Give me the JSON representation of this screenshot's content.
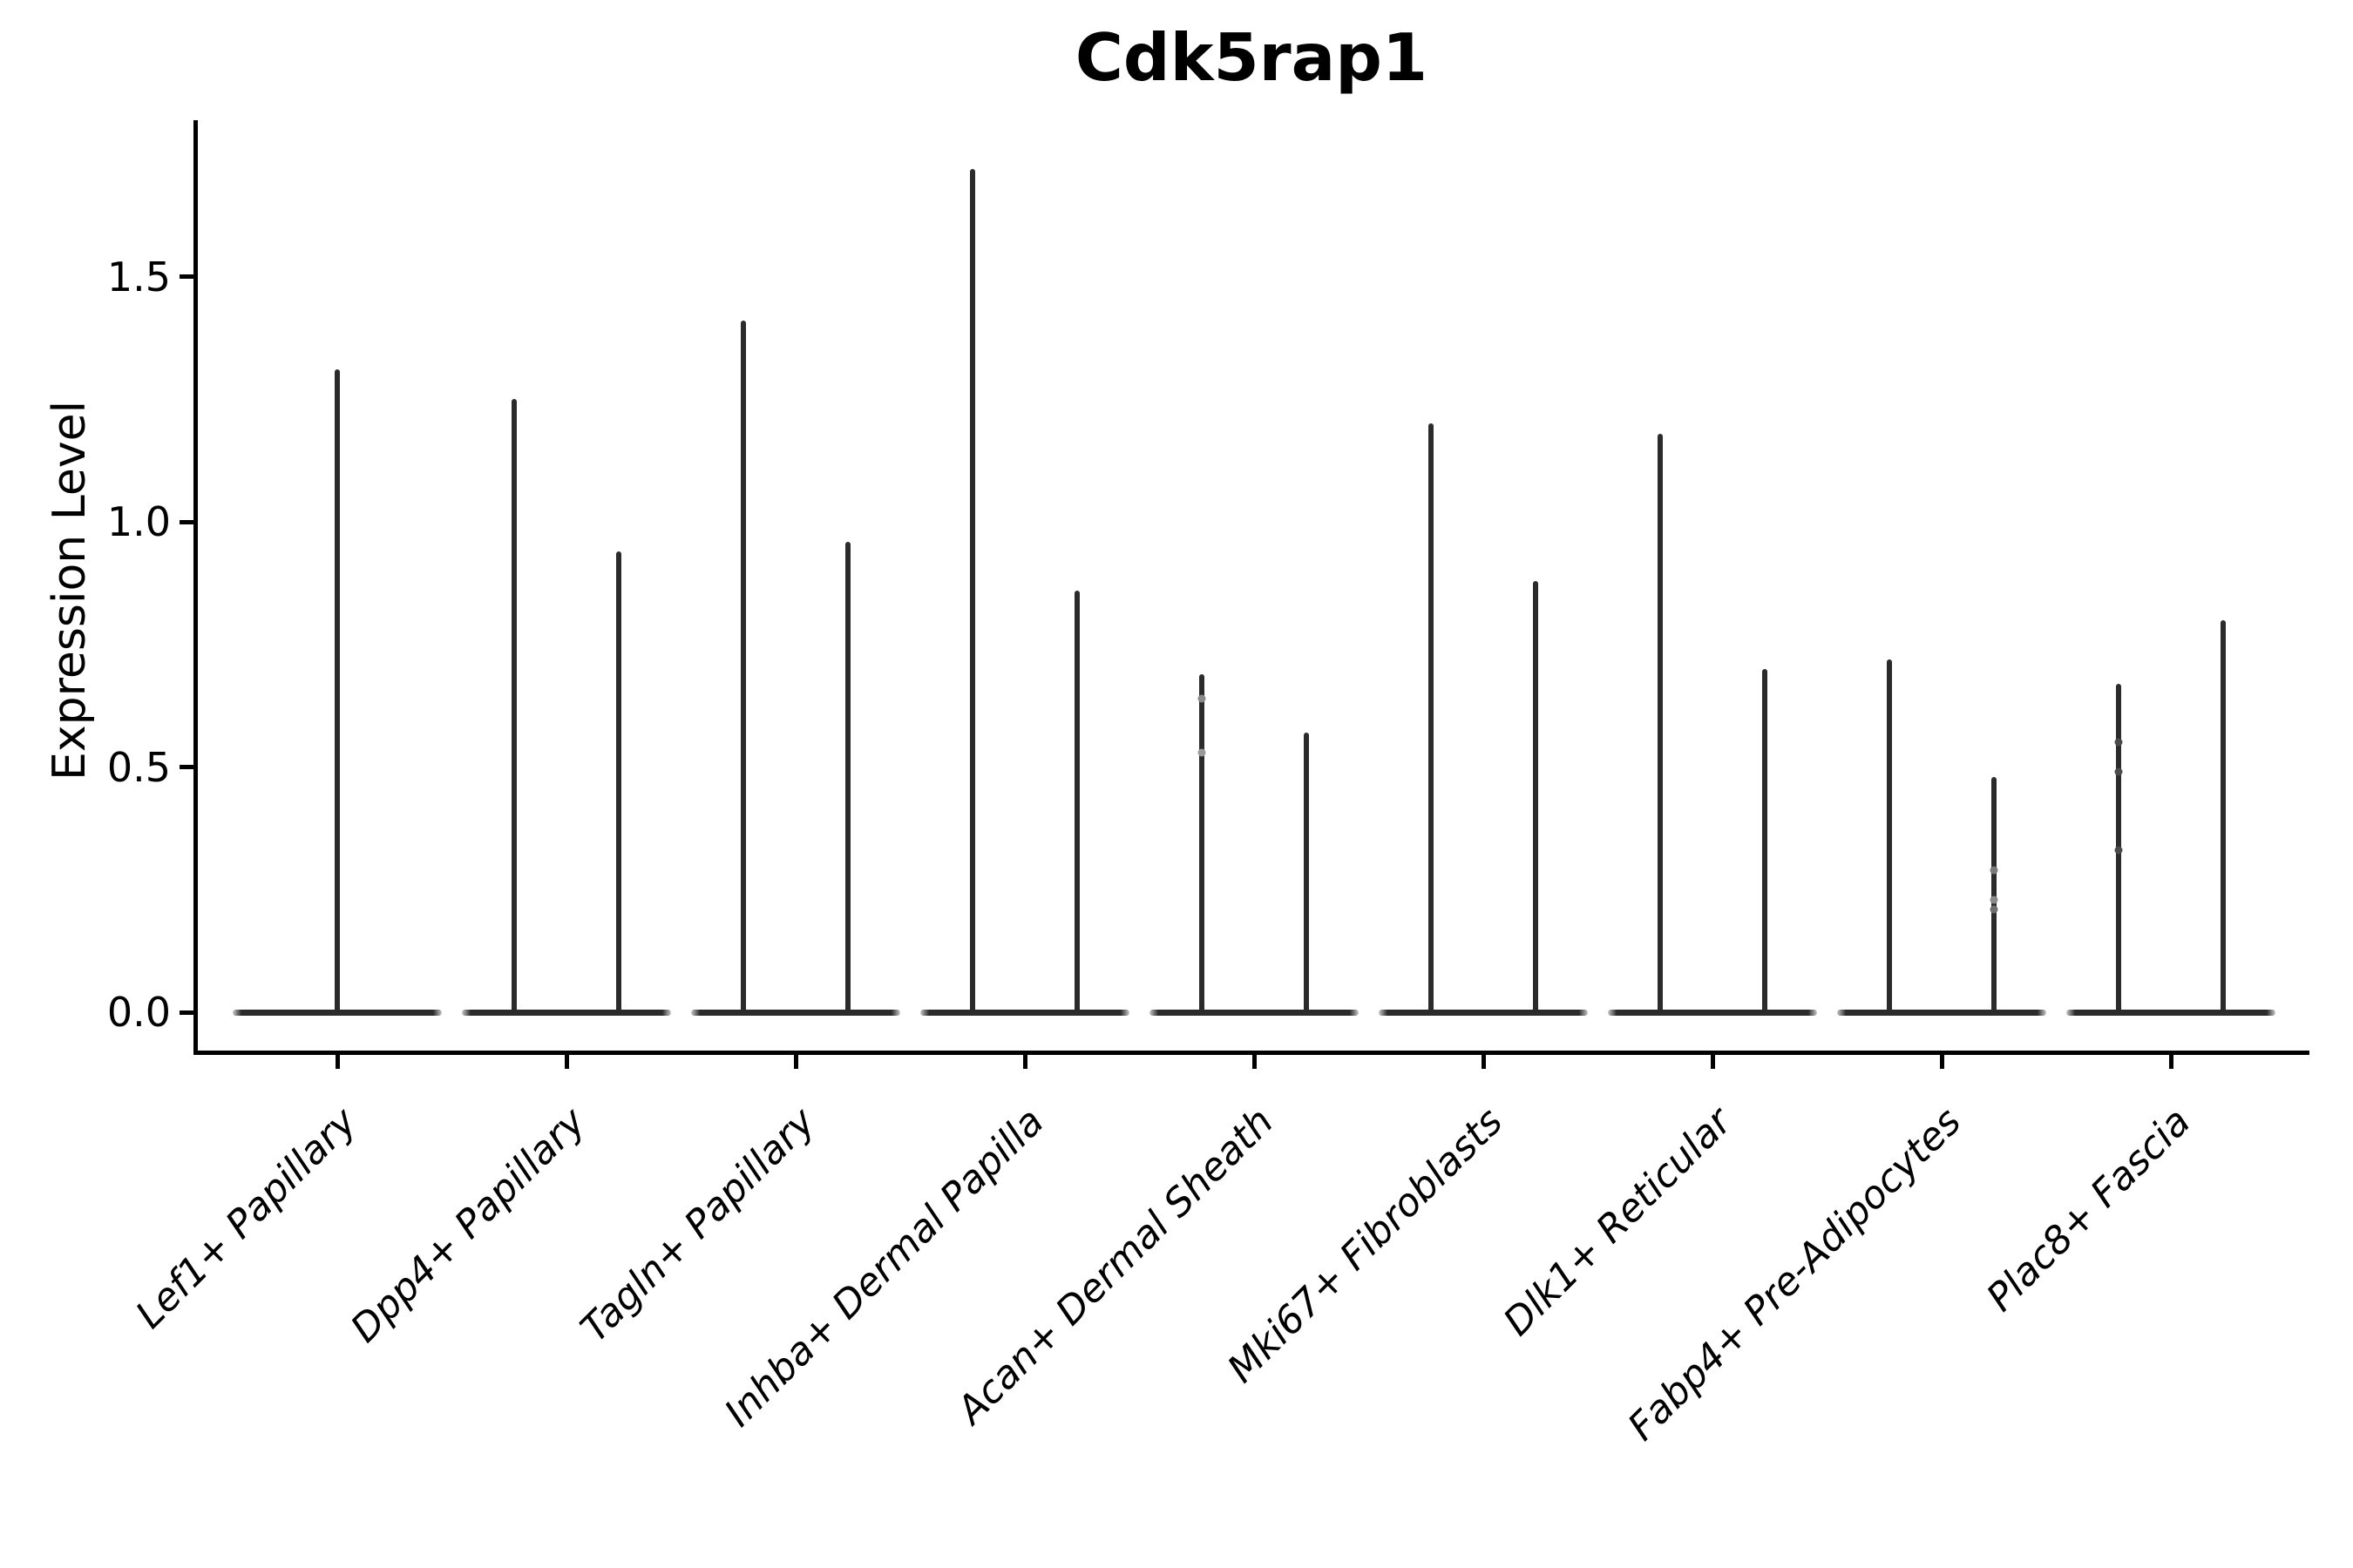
{
  "title": "Cdk5rap1",
  "chart_data": {
    "type": "violin",
    "title": "Cdk5rap1",
    "xlabel": "",
    "ylabel": "Expression Level",
    "ylim": [
      0,
      1.82
    ],
    "yticks": [
      0.0,
      0.5,
      1.0,
      1.5
    ],
    "ytick_labels": [
      "0.0",
      "0.5",
      "1.0",
      "1.5"
    ],
    "grid": false,
    "legend": false,
    "background_color": "#ffffff",
    "stroke_color": "#2b2b2b",
    "text_color": "#000000",
    "categories": [
      "Lef1+ Papillary",
      "Dpp4+ Papillary",
      "Tagln+ Papillary",
      "Inhba+ Dermal Papilla",
      "Acan+ Dermal Sheath",
      "Mki67+ Fibroblasts",
      "Dlk1+ Reticular",
      "Fabp4+ Pre-Adipocytes",
      "Plac8+ Fascia"
    ],
    "violins": [
      {
        "category": "Lef1+ Papillary",
        "spikes": [
          {
            "offset": 0.0,
            "max": 1.31
          }
        ],
        "points": []
      },
      {
        "category": "Dpp4+ Papillary",
        "spikes": [
          {
            "offset": -0.23,
            "max": 1.25
          },
          {
            "offset": 0.23,
            "max": 0.94
          }
        ],
        "points": []
      },
      {
        "category": "Tagln+ Papillary",
        "spikes": [
          {
            "offset": -0.23,
            "max": 1.41
          },
          {
            "offset": 0.23,
            "max": 0.96
          }
        ],
        "points": []
      },
      {
        "category": "Inhba+ Dermal Papilla",
        "spikes": [
          {
            "offset": -0.23,
            "max": 1.72
          },
          {
            "offset": 0.23,
            "max": 0.86
          }
        ],
        "points": []
      },
      {
        "category": "Acan+ Dermal Sheath",
        "spikes": [
          {
            "offset": -0.23,
            "max": 0.69
          },
          {
            "offset": 0.23,
            "max": 0.57
          }
        ],
        "points": [
          {
            "offset": -0.23,
            "value": 0.64,
            "color": "#8a8a8a"
          },
          {
            "offset": -0.23,
            "value": 0.53,
            "color": "#9a9a9a"
          }
        ]
      },
      {
        "category": "Mki67+ Fibroblasts",
        "spikes": [
          {
            "offset": -0.23,
            "max": 1.2
          },
          {
            "offset": 0.23,
            "max": 0.88
          }
        ],
        "points": []
      },
      {
        "category": "Dlk1+ Reticular",
        "spikes": [
          {
            "offset": -0.23,
            "max": 1.18
          },
          {
            "offset": 0.23,
            "max": 0.7
          }
        ],
        "points": []
      },
      {
        "category": "Fabp4+ Pre-Adipocytes",
        "spikes": [
          {
            "offset": -0.23,
            "max": 0.72
          },
          {
            "offset": 0.23,
            "max": 0.48
          }
        ],
        "points": [
          {
            "offset": 0.23,
            "value": 0.29,
            "color": "#7a7a7a"
          },
          {
            "offset": 0.23,
            "value": 0.23,
            "color": "#8a8a8a"
          },
          {
            "offset": 0.23,
            "value": 0.21,
            "color": "#6f6f6f"
          }
        ]
      },
      {
        "category": "Plac8+ Fascia",
        "spikes": [
          {
            "offset": -0.23,
            "max": 0.67
          },
          {
            "offset": 0.23,
            "max": 0.8
          }
        ],
        "points": [
          {
            "offset": -0.23,
            "value": 0.55,
            "color": "#4a4a4a"
          },
          {
            "offset": -0.23,
            "value": 0.49,
            "color": "#4a4a4a"
          },
          {
            "offset": -0.23,
            "value": 0.33,
            "color": "#4a4a4a"
          }
        ]
      }
    ]
  }
}
